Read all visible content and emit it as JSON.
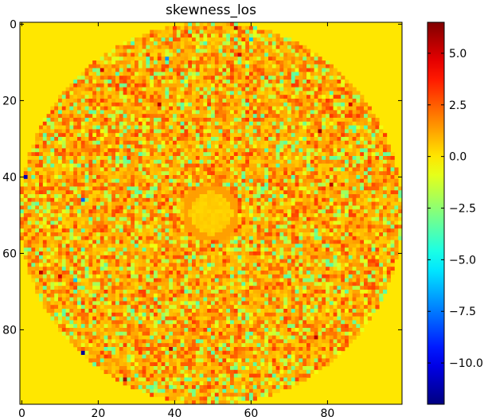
{
  "chart_data": {
    "type": "heatmap",
    "title": "skewness_los",
    "grid": false,
    "legend": "colorbar-right",
    "colormap": "jet",
    "image": {
      "rows": 100,
      "cols": 100,
      "xlim": [
        0,
        99
      ],
      "ylim": [
        99,
        0
      ],
      "origin": "upper",
      "background_value": 0.0,
      "disk": {
        "center": [
          49.5,
          49.5
        ],
        "radius": 50
      },
      "ring": {
        "center": [
          49.5,
          49.5
        ],
        "radius": 6.5,
        "value": 1.3
      },
      "typical_value_range": [
        -2.5,
        2.5
      ]
    },
    "x_ticks": [
      0,
      20,
      40,
      60,
      80
    ],
    "x_tick_labels": [
      "0",
      "20",
      "40",
      "60",
      "80"
    ],
    "y_ticks": [
      0,
      20,
      40,
      60,
      80
    ],
    "y_tick_labels": [
      "0",
      "20",
      "40",
      "60",
      "80"
    ],
    "colorbar": {
      "vmin": -12.0,
      "vmax": 6.5,
      "ticks": [
        5.0,
        2.5,
        0.0,
        -2.5,
        -5.0,
        -7.5,
        -10.0
      ],
      "tick_labels": [
        "5.0",
        "2.5",
        "0.0",
        "−2.5",
        "−5.0",
        "−7.5",
        "−10.0"
      ]
    },
    "notable_points": [
      {
        "x": 56,
        "y": 1,
        "value": 5.5
      },
      {
        "x": 60,
        "y": 4,
        "value": -6.0
      },
      {
        "x": 57,
        "y": 8,
        "value": 5.0
      },
      {
        "x": 38,
        "y": 9,
        "value": -7.0
      },
      {
        "x": 21,
        "y": 12,
        "value": 5.0
      },
      {
        "x": 36,
        "y": 21,
        "value": 5.5
      },
      {
        "x": 86,
        "y": 21,
        "value": 5.0
      },
      {
        "x": 78,
        "y": 28,
        "value": 6.0
      },
      {
        "x": 1,
        "y": 40,
        "value": -11.0
      },
      {
        "x": 81,
        "y": 42,
        "value": 5.5
      },
      {
        "x": 16,
        "y": 46,
        "value": -8.0
      },
      {
        "x": 5,
        "y": 65,
        "value": 5.5
      },
      {
        "x": 10,
        "y": 66,
        "value": 5.0
      },
      {
        "x": 14,
        "y": 67,
        "value": -6.0
      },
      {
        "x": 77,
        "y": 82,
        "value": 5.5
      },
      {
        "x": 16,
        "y": 86,
        "value": -11.5
      },
      {
        "x": 27,
        "y": 93,
        "value": 6.0
      },
      {
        "x": 39,
        "y": 85,
        "value": 5.5
      }
    ]
  }
}
